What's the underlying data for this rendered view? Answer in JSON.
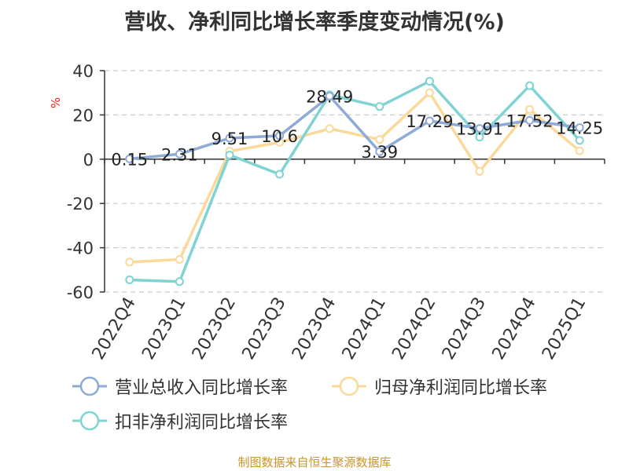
{
  "title": "营收、净利同比增长率季度变动情况(%)",
  "source_note": "制图数据来自恒生聚源数据库",
  "chart_data": {
    "type": "line",
    "title": "营收、净利同比增长率季度变动情况(%)",
    "ylabel": "%",
    "xlabel": "",
    "ylim": [
      -60,
      40
    ],
    "yticks": [
      40,
      20,
      0,
      -20,
      -40,
      -60
    ],
    "grid": true,
    "legend_position": "bottom",
    "categories": [
      "2022Q4",
      "2023Q1",
      "2023Q2",
      "2023Q3",
      "2023Q4",
      "2024Q1",
      "2024Q2",
      "2024Q3",
      "2024Q4",
      "2025Q1"
    ],
    "series": [
      {
        "name": "营业总收入同比增长率",
        "color": "#8eaad6",
        "values": [
          0.15,
          2.31,
          9.51,
          10.6,
          28.49,
          3.39,
          17.29,
          13.91,
          17.52,
          14.25
        ],
        "labels": [
          "0.15",
          "2.31",
          "9.51",
          "10.6",
          "28.49",
          "3.39",
          "17.29",
          "13.91",
          "17.52",
          "14.25"
        ]
      },
      {
        "name": "归母净利润同比增长率",
        "color": "#fbd99a",
        "values": [
          -46.5,
          -45.3,
          3.6,
          7.6,
          13.8,
          8.9,
          30.0,
          -5.5,
          22.5,
          3.8
        ]
      },
      {
        "name": "扣非净利润同比增长率",
        "color": "#7fd3d3",
        "values": [
          -54.5,
          -55.3,
          1.9,
          -6.8,
          29.1,
          23.8,
          35.2,
          10.0,
          33.2,
          8.5
        ]
      }
    ]
  }
}
